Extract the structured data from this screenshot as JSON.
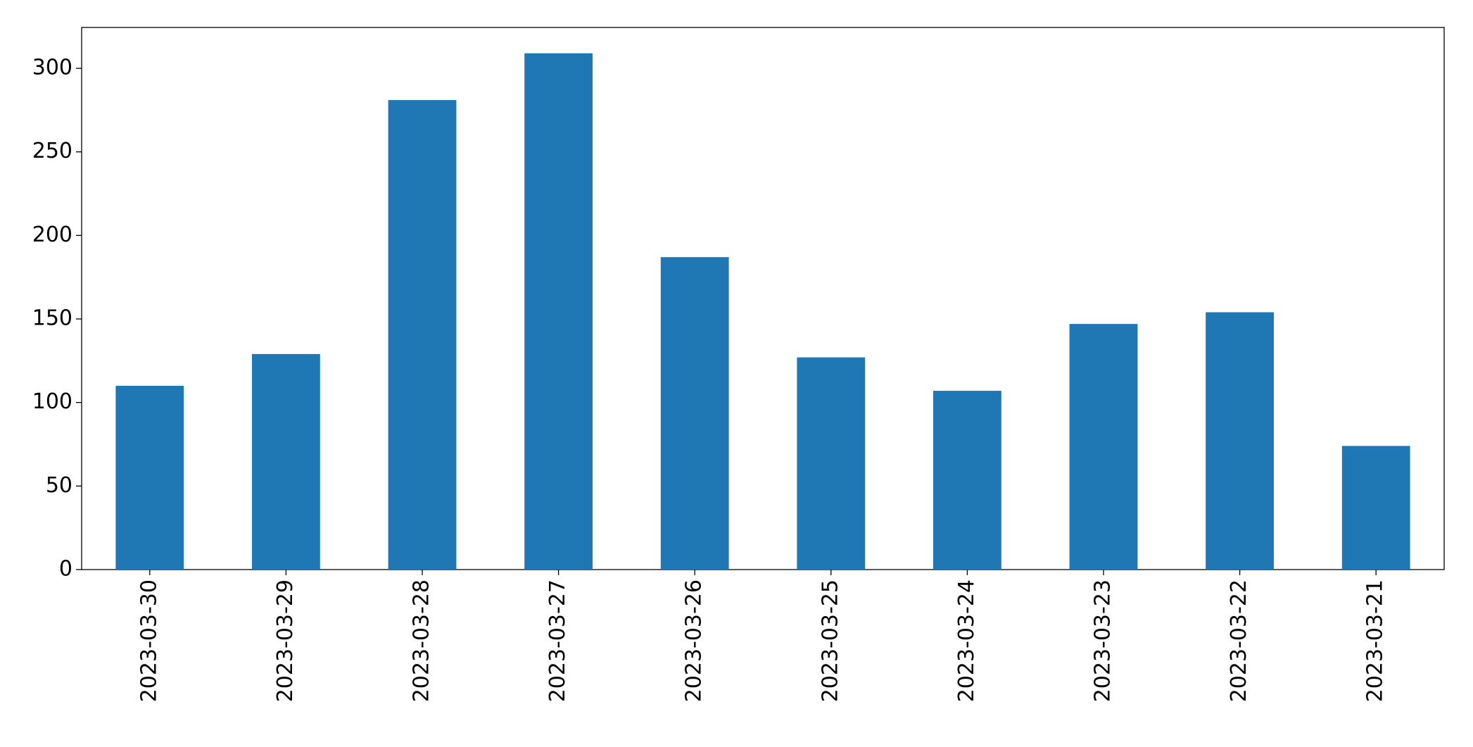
{
  "chart_data": {
    "type": "bar",
    "categories": [
      "2023-03-30",
      "2023-03-29",
      "2023-03-28",
      "2023-03-27",
      "2023-03-26",
      "2023-03-25",
      "2023-03-24",
      "2023-03-23",
      "2023-03-22",
      "2023-03-21"
    ],
    "values": [
      110,
      129,
      281,
      309,
      187,
      127,
      107,
      147,
      154,
      74
    ],
    "color": "#1f77b4",
    "ylim": [
      0,
      324.45
    ],
    "yticks": [
      0,
      50,
      100,
      150,
      200,
      250,
      300
    ],
    "grid": false
  }
}
